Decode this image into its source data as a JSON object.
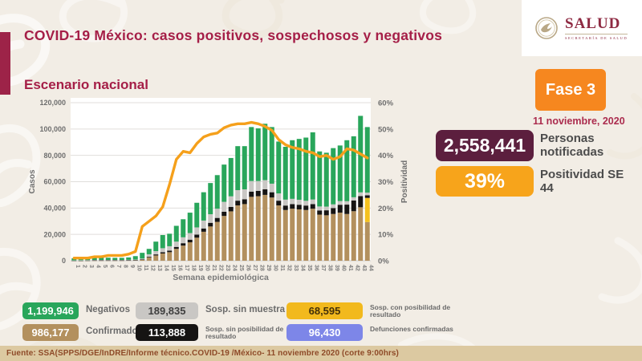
{
  "header": {
    "title": "COVID-19 México: casos positivos, sospechosos y negativos",
    "subtitle": "Escenario nacional"
  },
  "logo": {
    "name": "SALUD",
    "tagline": "SECRETARÍA DE SALUD"
  },
  "phase": {
    "label": "Fase 3",
    "date": "11 noviembre, 2020"
  },
  "stats": [
    {
      "value": "2,558,441",
      "label": "Personas notificadas",
      "color": "#5c1f3e"
    },
    {
      "value": "39%",
      "label": "Positividad SE 44",
      "color": "#f7a41b"
    }
  ],
  "legend": [
    {
      "value": "1,199,946",
      "label": "Negativos",
      "color": "#29a65b",
      "text": "#ffffff",
      "col": 0,
      "row": 0
    },
    {
      "value": "189,835",
      "label": "Sosp. sin muestra",
      "color": "#c9c7c4",
      "text": "#3f3f3f",
      "col": 1,
      "row": 0
    },
    {
      "value": "68,595",
      "label": "Sosp. con posibilidad de resultado",
      "color": "#f2b91d",
      "text": "#42300a",
      "col": 2,
      "row": 0
    },
    {
      "value": "986,177",
      "label": "Confirmados",
      "color": "#b3905e",
      "text": "#ffffff",
      "col": 0,
      "row": 1
    },
    {
      "value": "113,888",
      "label": "Sosp. sin posibilidad de resultado",
      "color": "#161413",
      "text": "#ffffff",
      "col": 1,
      "row": 1
    },
    {
      "value": "96,430",
      "label": "Defunciones confirmadas",
      "color": "#7d86e8",
      "text": "#ffffff",
      "col": 2,
      "row": 1
    }
  ],
  "footer": {
    "source": "Fuente: SSA(SPPS/DGE/InDRE/Informe técnico.COVID-19 /México- 11 noviembre 2020 (corte 9:00hrs)"
  },
  "chart_data": {
    "type": "bar",
    "stacked": true,
    "title": "Escenario nacional",
    "xlabel": "Semana epidemiológica",
    "ylabel_left": "Casos",
    "ylabel_right": "Positividad",
    "ylim_left": [
      0,
      120000
    ],
    "ylim_right_pct": [
      0,
      60
    ],
    "yticks_left": [
      "0",
      "20,000",
      "40,000",
      "60,000",
      "80,000",
      "100,000",
      "120,000"
    ],
    "yticks_right": [
      "0%",
      "10%",
      "20%",
      "30%",
      "40%",
      "50%",
      "60%"
    ],
    "grid": true,
    "x": [
      1,
      2,
      3,
      4,
      5,
      6,
      7,
      8,
      9,
      10,
      11,
      12,
      13,
      14,
      15,
      16,
      17,
      18,
      19,
      20,
      21,
      22,
      23,
      24,
      25,
      26,
      27,
      28,
      29,
      30,
      31,
      32,
      33,
      34,
      35,
      36,
      37,
      38,
      39,
      40,
      41,
      42,
      43,
      44
    ],
    "series": [
      {
        "name": "Confirmados",
        "color": "#b3905e",
        "values": [
          100,
          150,
          200,
          250,
          250,
          250,
          250,
          250,
          300,
          400,
          800,
          2600,
          4000,
          5500,
          6500,
          9000,
          11500,
          14000,
          17500,
          22000,
          26000,
          29500,
          34000,
          37500,
          42000,
          43000,
          48500,
          49000,
          50000,
          48000,
          42000,
          38500,
          39500,
          39000,
          38500,
          39500,
          35000,
          34500,
          35500,
          36500,
          35500,
          37600,
          40600,
          29400
        ]
      },
      {
        "name": "Sosp. con posibilidad de resultado",
        "color": "#f5c11e",
        "values": [
          0,
          0,
          0,
          0,
          0,
          0,
          0,
          0,
          0,
          0,
          0,
          0,
          0,
          0,
          0,
          0,
          0,
          0,
          0,
          0,
          0,
          0,
          0,
          0,
          0,
          0,
          0,
          0,
          0,
          0,
          0,
          0,
          0,
          0,
          0,
          0,
          0,
          0,
          0,
          0,
          0,
          0,
          0,
          18300
        ]
      },
      {
        "name": "Sosp. sin posibilidad de resultado",
        "color": "#161413",
        "values": [
          20,
          30,
          40,
          50,
          50,
          50,
          50,
          50,
          60,
          80,
          150,
          500,
          800,
          1000,
          1200,
          1500,
          1800,
          2000,
          2300,
          2500,
          2800,
          3000,
          3200,
          3400,
          3600,
          3700,
          4000,
          4000,
          4200,
          4000,
          3600,
          3400,
          3500,
          3500,
          3400,
          3500,
          3200,
          3800,
          4500,
          6000,
          7100,
          8100,
          8500,
          2000
        ]
      },
      {
        "name": "Sosp. sin muestra",
        "color": "#c9c7c4",
        "values": [
          150,
          200,
          250,
          300,
          300,
          300,
          300,
          300,
          350,
          450,
          700,
          1800,
          2500,
          3000,
          3300,
          4000,
          4500,
          5000,
          5500,
          6000,
          6500,
          7000,
          7500,
          8000,
          8000,
          7500,
          8000,
          7500,
          7000,
          6500,
          5500,
          4500,
          4000,
          3800,
          3600,
          3500,
          3000,
          2800,
          2800,
          2800,
          2600,
          2500,
          2800,
          2000
        ]
      },
      {
        "name": "Negativos",
        "color": "#29a65b",
        "values": [
          1530,
          1620,
          1710,
          1800,
          1800,
          1700,
          1600,
          1600,
          1790,
          2570,
          4350,
          4100,
          7200,
          10000,
          9500,
          12000,
          13700,
          15500,
          18700,
          21500,
          23700,
          25500,
          28300,
          29100,
          33400,
          32800,
          41000,
          40000,
          42800,
          43000,
          39400,
          40100,
          44500,
          46200,
          48000,
          51000,
          41800,
          40900,
          42700,
          42200,
          46300,
          46300,
          58100,
          49800
        ]
      }
    ],
    "line": {
      "name": "Positividad",
      "color": "#f5a01b",
      "values": [
        1,
        1,
        1,
        1.5,
        1.5,
        2,
        2,
        2,
        2.5,
        3.5,
        13,
        15,
        17,
        20.5,
        29,
        38.5,
        41.5,
        41,
        44.5,
        47,
        48,
        48.5,
        50.5,
        51.5,
        52,
        52,
        52.5,
        52,
        51,
        49.5,
        46,
        44,
        43,
        42.5,
        41.5,
        41,
        39.5,
        40,
        38.5,
        39.5,
        42.5,
        42,
        40.5,
        39
      ]
    }
  }
}
